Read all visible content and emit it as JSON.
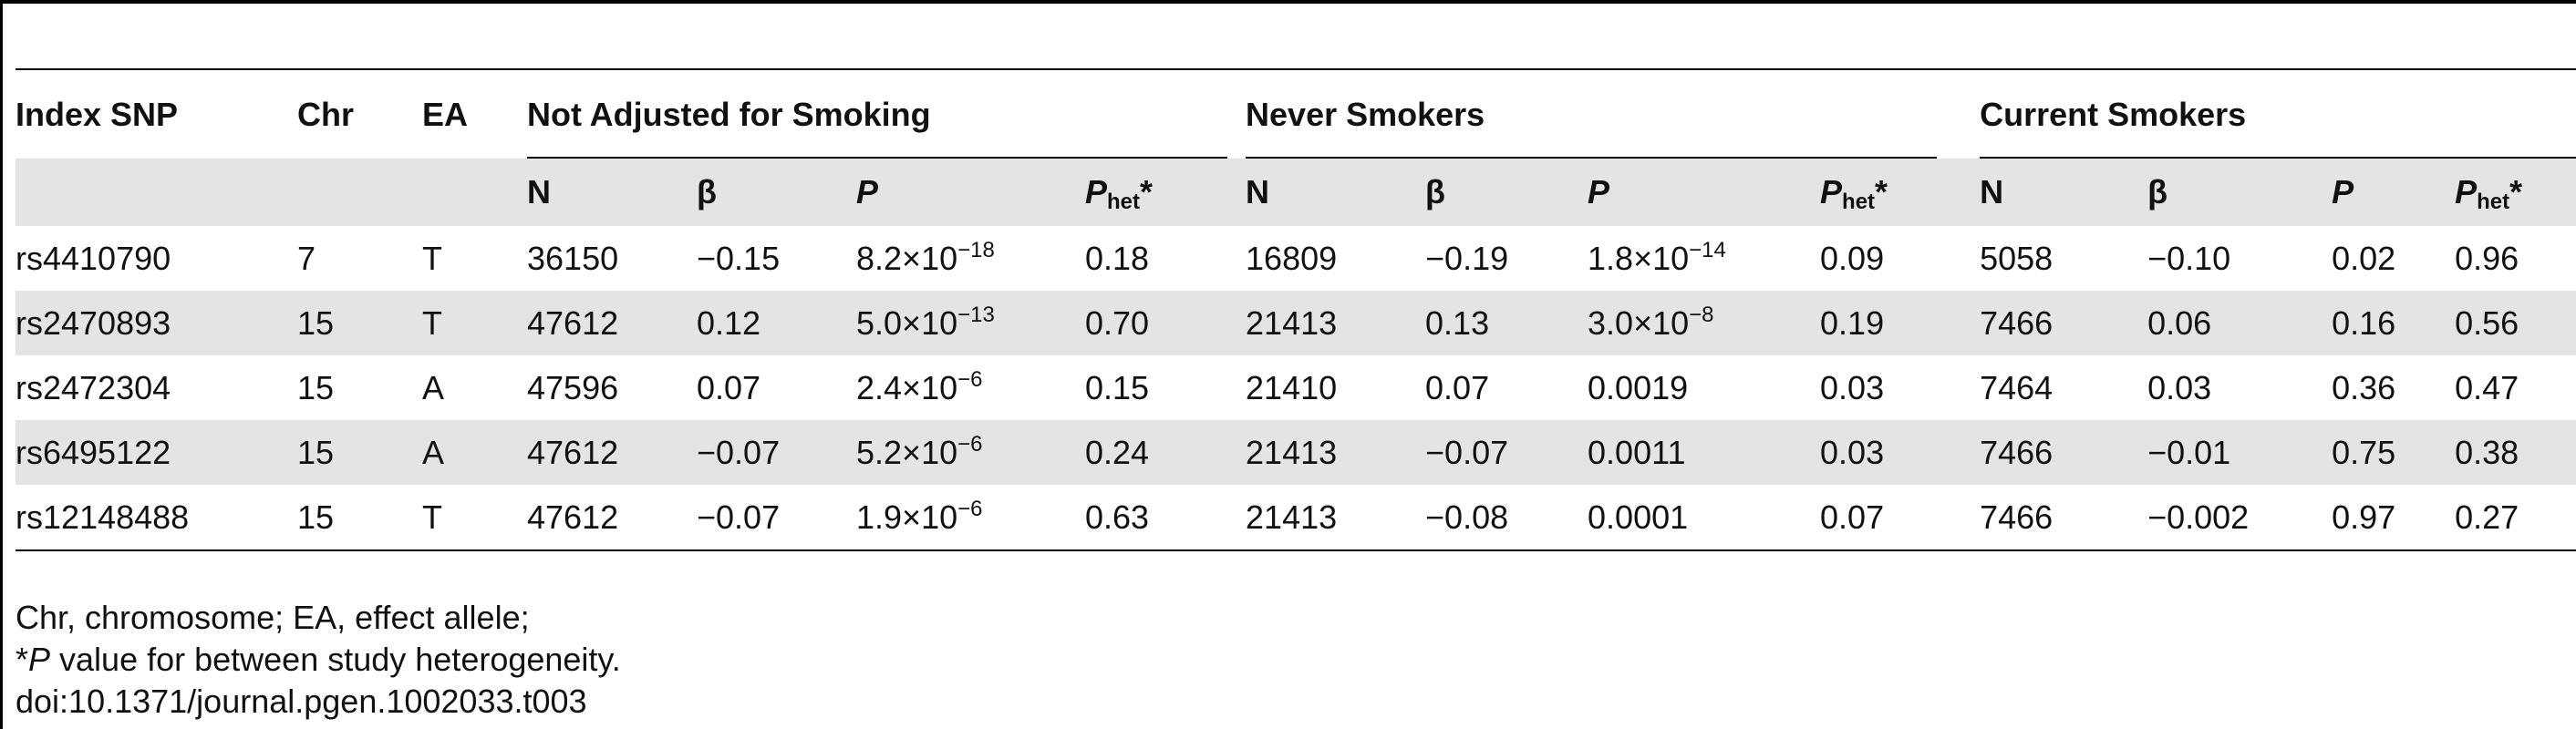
{
  "headers": {
    "index_snp": "Index SNP",
    "chr": "Chr",
    "ea": "EA",
    "groups": [
      "Not Adjusted for Smoking",
      "Never Smokers",
      "Current Smokers"
    ],
    "sub": {
      "n": "N",
      "beta": "β",
      "p": "P",
      "phet_base": "P",
      "phet_sub": "het",
      "phet_star": "*"
    }
  },
  "rows": [
    {
      "snp": "rs4410790",
      "chr": "7",
      "ea": "T",
      "groups": [
        {
          "n": "36150",
          "beta": "−0.15",
          "p_m": "8.2×10",
          "p_e": "−18",
          "phet": "0.18"
        },
        {
          "n": "16809",
          "beta": "−0.19",
          "p_m": "1.8×10",
          "p_e": "−14",
          "phet": "0.09"
        },
        {
          "n": "5058",
          "beta": "−0.10",
          "p_m": "0.02",
          "p_e": "",
          "phet": "0.96"
        }
      ]
    },
    {
      "snp": "rs2470893",
      "chr": "15",
      "ea": "T",
      "groups": [
        {
          "n": "47612",
          "beta": "0.12",
          "p_m": "5.0×10",
          "p_e": "−13",
          "phet": "0.70"
        },
        {
          "n": "21413",
          "beta": "0.13",
          "p_m": "3.0×10",
          "p_e": "−8",
          "phet": "0.19"
        },
        {
          "n": "7466",
          "beta": "0.06",
          "p_m": "0.16",
          "p_e": "",
          "phet": "0.56"
        }
      ]
    },
    {
      "snp": "rs2472304",
      "chr": "15",
      "ea": "A",
      "groups": [
        {
          "n": "47596",
          "beta": "0.07",
          "p_m": "2.4×10",
          "p_e": "−6",
          "phet": "0.15"
        },
        {
          "n": "21410",
          "beta": "0.07",
          "p_m": "0.0019",
          "p_e": "",
          "phet": "0.03"
        },
        {
          "n": "7464",
          "beta": "0.03",
          "p_m": "0.36",
          "p_e": "",
          "phet": "0.47"
        }
      ]
    },
    {
      "snp": "rs6495122",
      "chr": "15",
      "ea": "A",
      "groups": [
        {
          "n": "47612",
          "beta": "−0.07",
          "p_m": "5.2×10",
          "p_e": "−6",
          "phet": "0.24"
        },
        {
          "n": "21413",
          "beta": "−0.07",
          "p_m": "0.0011",
          "p_e": "",
          "phet": "0.03"
        },
        {
          "n": "7466",
          "beta": "−0.01",
          "p_m": "0.75",
          "p_e": "",
          "phet": "0.38"
        }
      ]
    },
    {
      "snp": "rs12148488",
      "chr": "15",
      "ea": "T",
      "groups": [
        {
          "n": "47612",
          "beta": "−0.07",
          "p_m": "1.9×10",
          "p_e": "−6",
          "phet": "0.63"
        },
        {
          "n": "21413",
          "beta": "−0.08",
          "p_m": "0.0001",
          "p_e": "",
          "phet": "0.07"
        },
        {
          "n": "7466",
          "beta": "−0.002",
          "p_m": "0.97",
          "p_e": "",
          "phet": "0.27"
        }
      ]
    }
  ],
  "footer": {
    "abbrev": "Chr, chromosome; EA, effect allele;",
    "note_star": "*",
    "note_p": "P",
    "note_rest": " value for between study heterogeneity.",
    "doi": "doi:10.1371/journal.pgen.1002033.t003"
  }
}
